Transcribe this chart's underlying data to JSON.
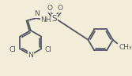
{
  "background_color": "#f2edd8",
  "line_color": "#555566",
  "line_width": 1.3,
  "font_size": 6.5,
  "figsize": [
    1.67,
    0.97
  ],
  "dpi": 100,
  "xlim": [
    0,
    167
  ],
  "ylim": [
    0,
    97
  ]
}
